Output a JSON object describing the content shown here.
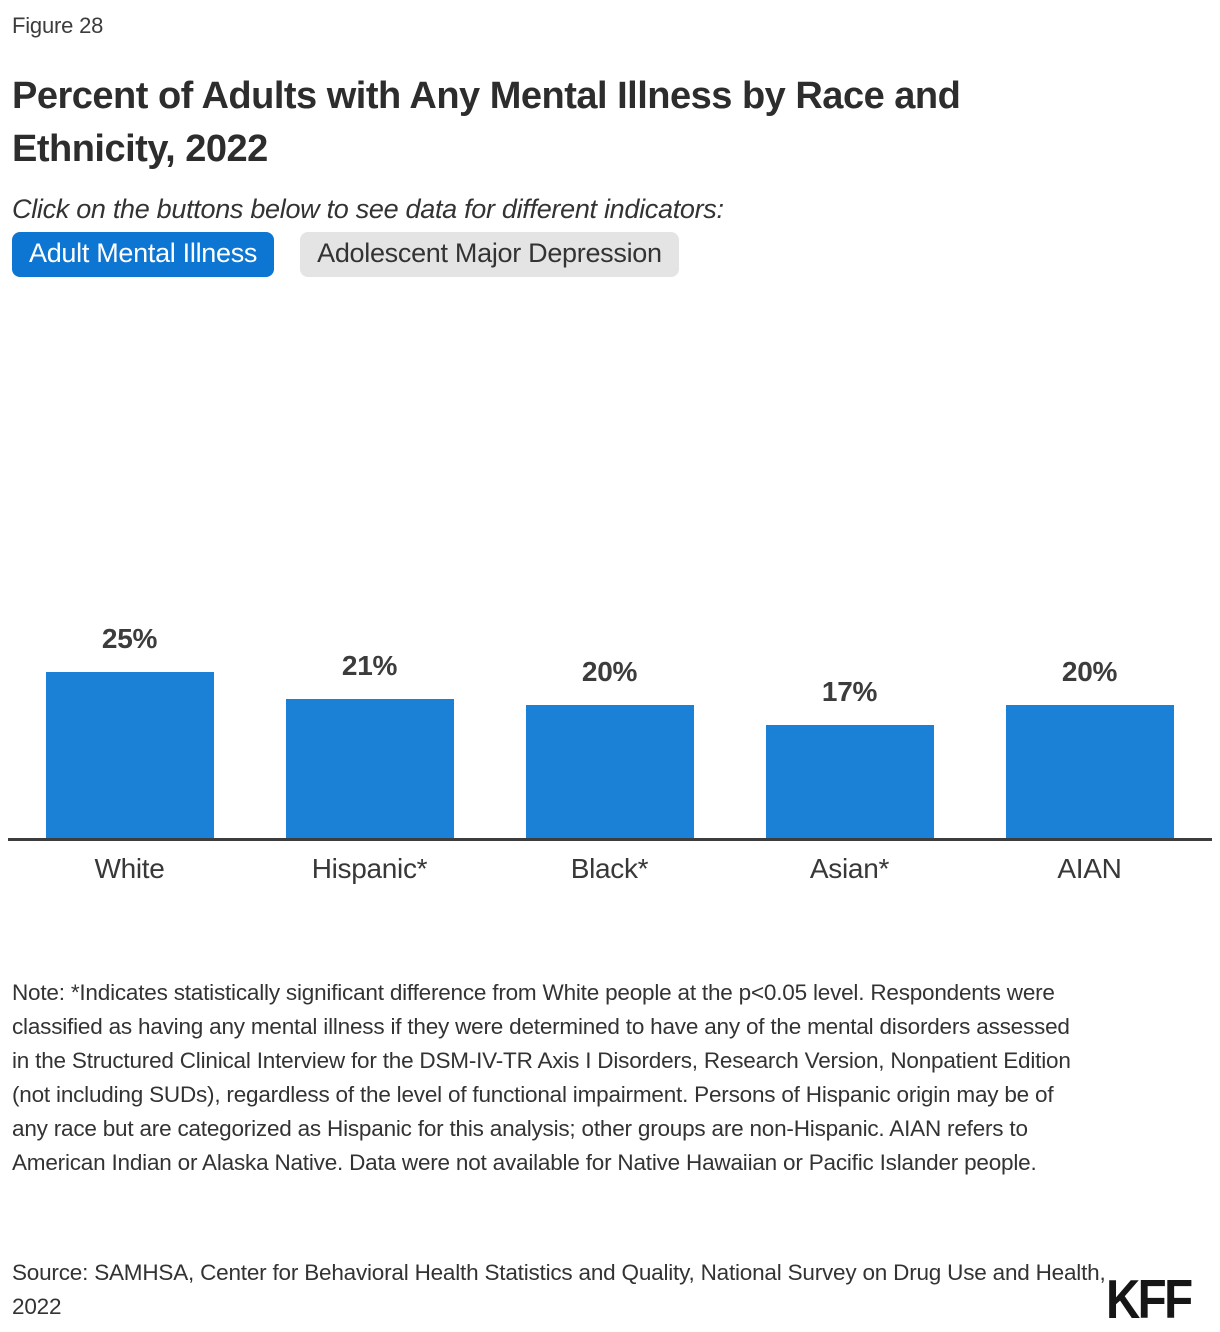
{
  "figure_label": "Figure 28",
  "title": "Percent of Adults with Any Mental Illness by Race and Ethnicity, 2022",
  "subtitle": "Click on the buttons below to see data for different indicators:",
  "buttons": [
    {
      "label": "Adult Mental Illness",
      "active": true
    },
    {
      "label": "Adolescent Major Depression",
      "active": false
    }
  ],
  "chart_data": {
    "type": "bar",
    "categories": [
      "White",
      "Hispanic*",
      "Black*",
      "Asian*",
      "AIAN"
    ],
    "values": [
      25,
      21,
      20,
      17,
      20
    ],
    "value_labels": [
      "25%",
      "21%",
      "20%",
      "17%",
      "20%"
    ],
    "title": "Percent of Adults with Any Mental Illness by Race and Ethnicity, 2022",
    "xlabel": "",
    "ylabel": "",
    "ylim": [
      0,
      28
    ],
    "grid": false,
    "legend": false,
    "bar_color": "#1b81d6",
    "axis_color": "#3d3d3d",
    "label_color": "#3c3c3c"
  },
  "note": "Note: *Indicates statistically significant difference from White people at the p<0.05 level. Respondents were classified as having any mental illness if they were determined to have any of the mental disorders assessed in the Structured Clinical Interview for the DSM-IV-TR Axis I Disorders, Research Version, Nonpatient Edition (not including SUDs), regardless of the level of functional impairment. Persons of Hispanic origin may be of any race but are categorized as Hispanic for this analysis; other groups are non-Hispanic. AIAN refers to American Indian or Alaska Native. Data were not available for Native Hawaiian or Pacific Islander people.",
  "source": "Source: SAMHSA, Center for Behavioral Health Statistics and Quality, National Survey on Drug Use and Health, 2022",
  "logo_text": "KFF",
  "colors": {
    "accent_blue": "#0d76d2",
    "bar_blue": "#1b81d6",
    "inactive_button_bg": "#e4e4e4",
    "text_dark": "#2d2d2d"
  }
}
